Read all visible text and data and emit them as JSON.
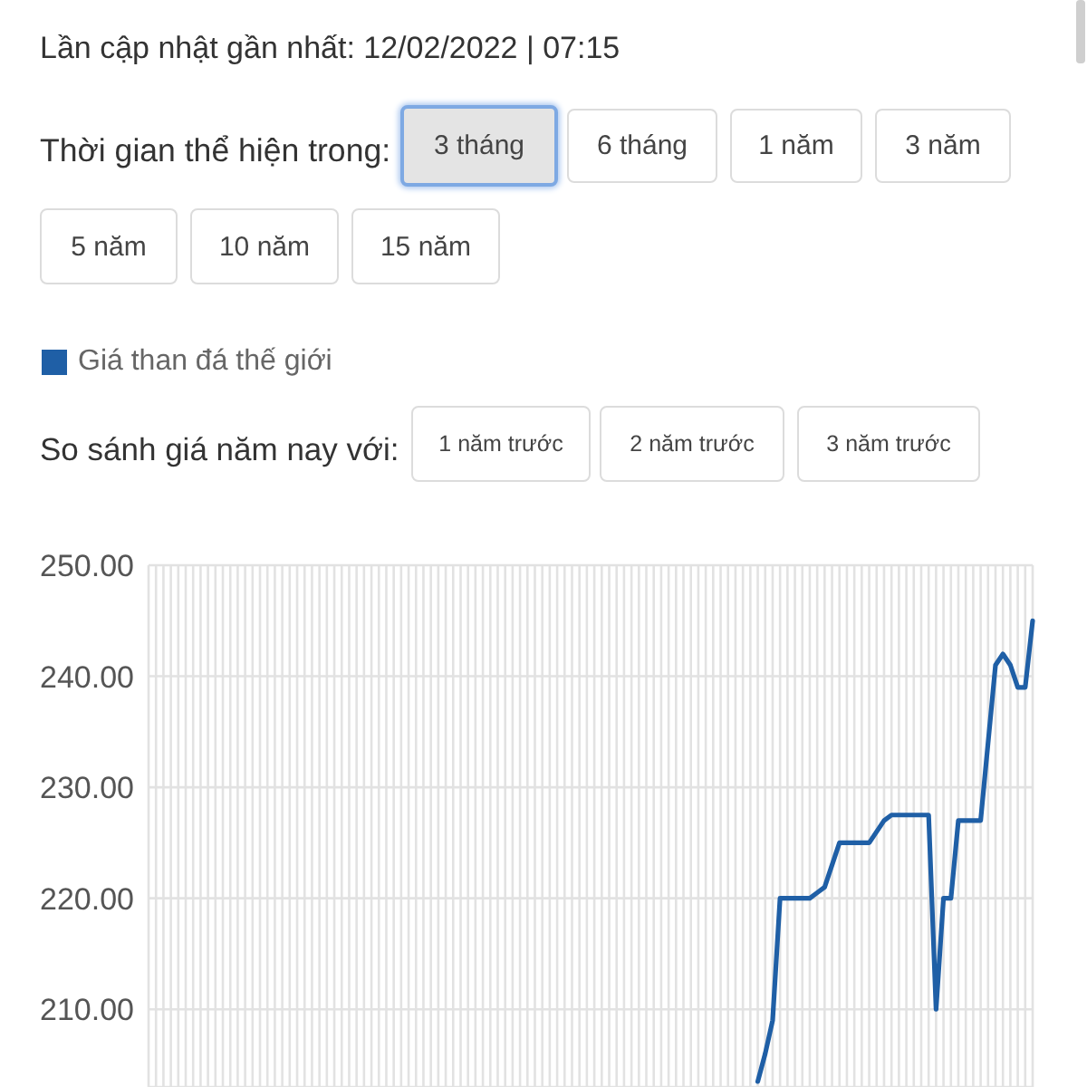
{
  "chart_data": {
    "type": "line",
    "annotations": [
      "Lần cập nhật gần nhất: 12/02/2022 | 07:15",
      "Thời gian thể hiện trong:",
      "3 tháng",
      "6 tháng",
      "1 năm",
      "3 năm",
      "5 năm",
      "10 năm",
      "15 năm",
      "So sánh giá năm nay với:",
      "1 năm trước",
      "2 năm trước",
      "3 năm trước"
    ],
    "categories": [
      null,
      null,
      null,
      null,
      null,
      null,
      null,
      null,
      null,
      null,
      null,
      null,
      null,
      null,
      null,
      null,
      null,
      null,
      null,
      null,
      null,
      null,
      null,
      null,
      null,
      null,
      null,
      null,
      null,
      null,
      null,
      null,
      null,
      null,
      null,
      null,
      null,
      null,
      null,
      null,
      null,
      null,
      null,
      null,
      null,
      null,
      null,
      null,
      null,
      null,
      null,
      null,
      null,
      null,
      null,
      null,
      null,
      null,
      null,
      null,
      null,
      null,
      null,
      null,
      null,
      null,
      null,
      null,
      null,
      null,
      null,
      null,
      null,
      null,
      null,
      null,
      null,
      null,
      null,
      null,
      null,
      null,
      null,
      null,
      null,
      null,
      null,
      null,
      null,
      null,
      null,
      null,
      null,
      null,
      null,
      null,
      null,
      null,
      null,
      null,
      null,
      null,
      null,
      null,
      null,
      null,
      null,
      null,
      null,
      null,
      null,
      null,
      null,
      null,
      null,
      null,
      null,
      null,
      null,
      null
    ],
    "series": [
      {
        "name": "Giá than đá thế giới",
        "color": "#1f5fa6",
        "values": [
          null,
          null,
          null,
          null,
          null,
          null,
          null,
          null,
          null,
          null,
          null,
          null,
          null,
          null,
          null,
          null,
          null,
          null,
          null,
          null,
          null,
          null,
          null,
          null,
          null,
          null,
          null,
          null,
          null,
          null,
          null,
          null,
          null,
          null,
          null,
          null,
          null,
          null,
          null,
          null,
          null,
          null,
          null,
          null,
          null,
          null,
          null,
          null,
          null,
          null,
          null,
          null,
          null,
          null,
          null,
          null,
          null,
          null,
          null,
          null,
          null,
          null,
          null,
          null,
          null,
          null,
          null,
          null,
          null,
          null,
          null,
          null,
          null,
          null,
          null,
          null,
          null,
          null,
          null,
          null,
          null,
          null,
          203.5,
          206,
          209,
          220,
          220,
          220,
          220,
          220,
          220.5,
          221,
          223,
          225,
          225,
          225,
          225,
          225,
          226,
          227,
          227.5,
          227.5,
          227.5,
          227.5,
          227.5,
          227.5,
          210,
          220,
          220,
          227,
          227,
          227,
          227,
          234,
          241,
          242,
          241,
          239,
          239,
          245
        ]
      }
    ],
    "ylim": [
      203,
      250
    ],
    "yticks": [
      {
        "value": 210,
        "label": "210.00"
      },
      {
        "value": 220,
        "label": "220.00"
      },
      {
        "value": 230,
        "label": "230.00"
      },
      {
        "value": 240,
        "label": "240.00"
      },
      {
        "value": 250,
        "label": "250.00"
      }
    ],
    "grid": true,
    "legend": "top left",
    "tick_labels": "y"
  }
}
